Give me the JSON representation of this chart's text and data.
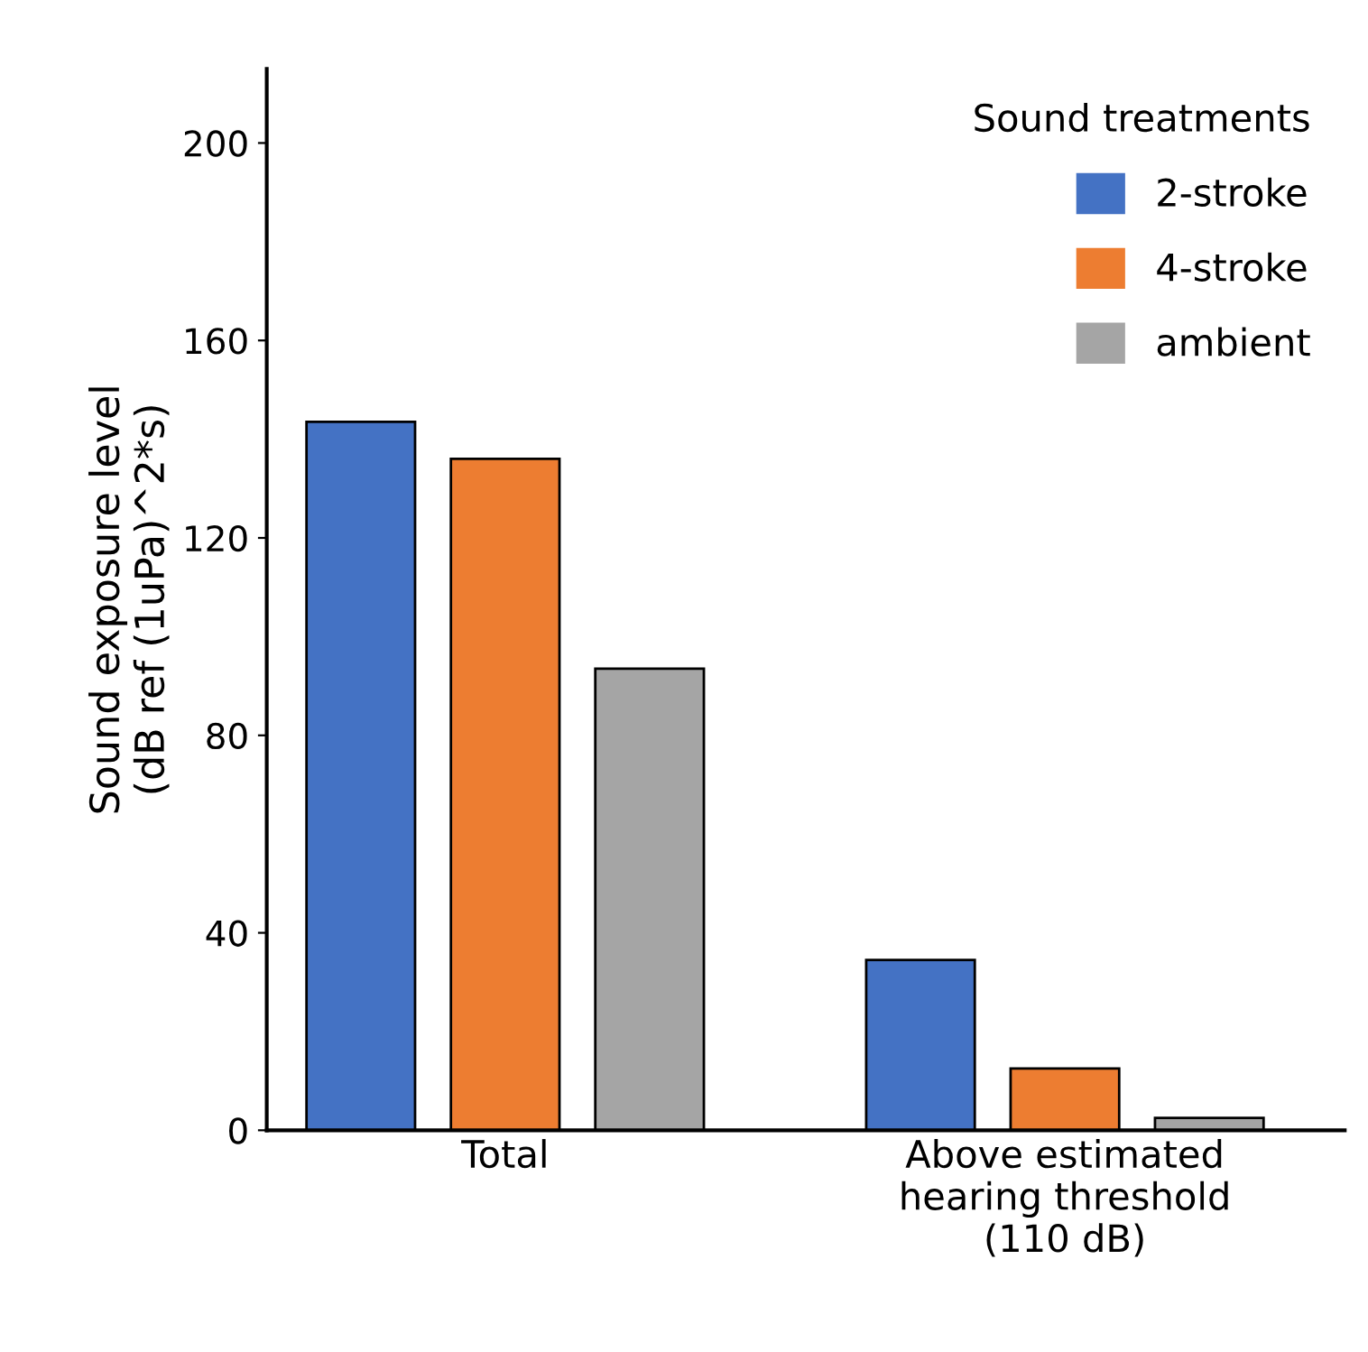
{
  "chart_data": {
    "type": "bar",
    "ylabel": "Sound exposure level\n(dB ref (1uPa)^2*s)",
    "legend_title": "Sound treatments",
    "legend": "top right",
    "categories": [
      "Total",
      "Above estimated\nhearing threshold\n(110 dB)"
    ],
    "series": [
      {
        "name": "2-stroke",
        "color": "#4472c4",
        "values": [
          143.5,
          34.5
        ]
      },
      {
        "name": "4-stroke",
        "color": "#ed7d31",
        "values": [
          136,
          12.5
        ]
      },
      {
        "name": "ambient",
        "color": "#a5a5a5",
        "values": [
          93.5,
          2.5
        ]
      }
    ],
    "ylim": [
      0,
      215
    ],
    "yticks": [
      0,
      40,
      80,
      120,
      160,
      200
    ],
    "grid": false
  }
}
